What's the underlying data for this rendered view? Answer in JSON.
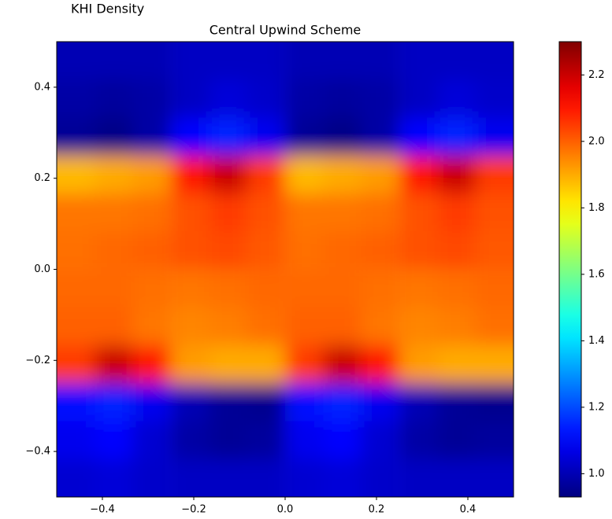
{
  "chart_data": {
    "type": "heatmap",
    "suptitle": "KHI Density",
    "title": "Central Upwind Scheme",
    "colormap": "jet",
    "xlim": [
      -0.5,
      0.5
    ],
    "ylim": [
      -0.5,
      0.5
    ],
    "xticks": [
      {
        "value": -0.4,
        "label": "−0.4"
      },
      {
        "value": -0.2,
        "label": "−0.2"
      },
      {
        "value": 0,
        "label": "0.0"
      },
      {
        "value": 0.2,
        "label": "0.2"
      },
      {
        "value": 0.4,
        "label": "0.4"
      }
    ],
    "yticks": [
      {
        "value": -0.4,
        "label": "−0.4"
      },
      {
        "value": -0.2,
        "label": "−0.2"
      },
      {
        "value": 0,
        "label": "0.0"
      },
      {
        "value": 0.2,
        "label": "0.2"
      },
      {
        "value": 0.4,
        "label": "0.4"
      }
    ],
    "clim": [
      0.93,
      2.3
    ],
    "cticks": [
      {
        "value": 1,
        "label": "1.0"
      },
      {
        "value": 1.2,
        "label": "1.2"
      },
      {
        "value": 1.4,
        "label": "1.4"
      },
      {
        "value": 1.6,
        "label": "1.6"
      },
      {
        "value": 1.8,
        "label": "1.8"
      },
      {
        "value": 2,
        "label": "2.0"
      },
      {
        "value": 2.2,
        "label": "2.2"
      }
    ],
    "x": [
      -0.458,
      -0.375,
      -0.292,
      -0.208,
      -0.125,
      -0.042,
      0.042,
      0.125,
      0.208,
      0.292,
      0.375,
      0.458
    ],
    "y": [
      0.458,
      0.375,
      0.292,
      0.208,
      0.125,
      0.042,
      -0.042,
      -0.125,
      -0.208,
      -0.292,
      -0.375,
      -0.458
    ],
    "z": [
      [
        1.0,
        1.0,
        1.0,
        1.02,
        1.02,
        1.02,
        1.0,
        1.0,
        1.0,
        1.02,
        1.02,
        1.02
      ],
      [
        0.98,
        0.97,
        0.98,
        1.02,
        1.05,
        1.03,
        0.98,
        0.97,
        0.98,
        1.02,
        1.05,
        1.03
      ],
      [
        0.96,
        0.94,
        0.98,
        1.1,
        1.15,
        1.08,
        0.96,
        0.94,
        0.98,
        1.1,
        1.15,
        1.08
      ],
      [
        1.88,
        1.9,
        1.92,
        2.1,
        2.2,
        2.05,
        1.88,
        1.9,
        1.92,
        2.1,
        2.2,
        2.05
      ],
      [
        1.97,
        1.97,
        1.98,
        2.02,
        2.05,
        2.02,
        1.97,
        1.97,
        1.98,
        2.02,
        2.05,
        2.02
      ],
      [
        1.98,
        1.99,
        2.0,
        2.02,
        2.03,
        2.01,
        1.98,
        1.99,
        2.0,
        2.02,
        2.03,
        2.01
      ],
      [
        1.99,
        1.99,
        1.98,
        1.97,
        1.98,
        1.99,
        1.99,
        1.99,
        1.98,
        1.97,
        1.98,
        1.99
      ],
      [
        2.0,
        2.0,
        1.97,
        1.95,
        1.96,
        1.98,
        2.0,
        2.0,
        1.97,
        1.95,
        1.96,
        1.98
      ],
      [
        2.05,
        2.2,
        2.1,
        1.92,
        1.9,
        1.9,
        2.05,
        2.2,
        2.1,
        1.92,
        1.9,
        1.9
      ],
      [
        1.12,
        1.15,
        1.08,
        1.0,
        0.96,
        0.95,
        1.12,
        1.15,
        1.08,
        1.0,
        0.96,
        0.95
      ],
      [
        1.08,
        1.1,
        1.04,
        0.98,
        0.96,
        0.97,
        1.08,
        1.1,
        1.04,
        0.98,
        0.96,
        0.97
      ],
      [
        1.04,
        1.05,
        1.03,
        1.02,
        1.02,
        1.02,
        1.04,
        1.05,
        1.03,
        1.02,
        1.02,
        1.02
      ]
    ]
  }
}
